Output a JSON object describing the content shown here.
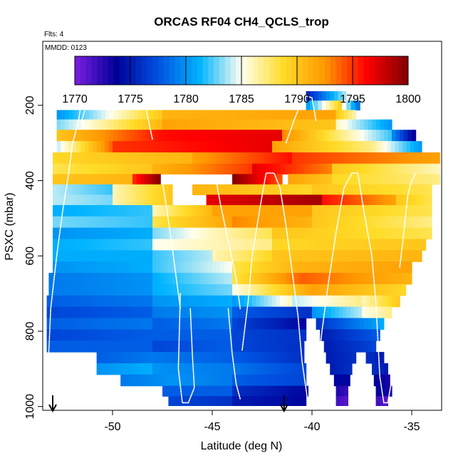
{
  "chart_data": {
    "type": "heatmap",
    "title": "ORCAS RF04 CH4_QCLS_trop",
    "flights_note": "Flts: 4",
    "date_note": "MMDD: 0123",
    "xlabel": "Latitude (deg N)",
    "ylabel": "PSXC (mbar)",
    "xlim": [
      -53.5,
      -33.5
    ],
    "ylim": [
      1010,
      30
    ],
    "x_ticks": [
      -50,
      -45,
      -40,
      -35
    ],
    "y_ticks": [
      200,
      400,
      600,
      800,
      1000
    ],
    "colorbar": {
      "min": 1770,
      "max": 1800,
      "ticks": [
        1770,
        1775,
        1780,
        1785,
        1790,
        1795,
        1800
      ],
      "colors": [
        "#7b1fe0",
        "#000099",
        "#0050e0",
        "#00b4ff",
        "#fffff0",
        "#ffdc28",
        "#ff9900",
        "#ff0000",
        "#800000"
      ]
    },
    "grid": false,
    "arrows_lat": [
      -53,
      -41.4
    ],
    "bands": [
      {
        "p": 175,
        "segs": [
          [
            -40.3,
            -38.3,
            1775,
            1784
          ]
        ]
      },
      {
        "p": 200,
        "segs": [
          [
            -40.3,
            -38.5,
            1780,
            1790
          ],
          [
            -38.5,
            -37.6,
            1786,
            1778
          ]
        ]
      },
      {
        "p": 225,
        "segs": [
          [
            -52.8,
            -47.5,
            1780,
            1790
          ],
          [
            -47.5,
            -38.8,
            1791,
            1792
          ],
          [
            -38.8,
            -37.8,
            1790,
            1786
          ]
        ]
      },
      {
        "p": 250,
        "segs": [
          [
            -52.8,
            -47.5,
            1783,
            1791
          ],
          [
            -47.5,
            -38.8,
            1792,
            1790
          ],
          [
            -38.8,
            -36,
            1786,
            1780
          ]
        ]
      },
      {
        "p": 280,
        "segs": [
          [
            -52.8,
            -47.5,
            1790,
            1796
          ],
          [
            -47.5,
            -41.5,
            1796,
            1797
          ],
          [
            -41.5,
            -36,
            1793,
            1782
          ],
          [
            -36,
            -34.8,
            1780,
            1773
          ]
        ]
      },
      {
        "p": 310,
        "segs": [
          [
            -52.8,
            -50,
            1784,
            1794
          ],
          [
            -50,
            -42,
            1795,
            1797
          ],
          [
            -42,
            -37,
            1792,
            1787
          ],
          [
            -37,
            -34.5,
            1787,
            1780
          ]
        ]
      },
      {
        "p": 340,
        "segs": [
          [
            -53,
            -46,
            1789,
            1791
          ],
          [
            -46,
            -41,
            1792,
            1796
          ],
          [
            -41,
            -33.6,
            1795,
            1792
          ]
        ]
      },
      {
        "p": 370,
        "segs": [
          [
            -53,
            -48,
            1788,
            1790
          ],
          [
            -48,
            -43,
            1791,
            1795
          ],
          [
            -43,
            -39,
            1797,
            1793
          ],
          [
            -39,
            -33.6,
            1790,
            1786
          ]
        ]
      },
      {
        "p": 395,
        "segs": [
          [
            -53,
            -49,
            1790,
            1791
          ],
          [
            -49,
            -47.6,
            1795,
            1800
          ],
          [
            -44,
            -41.5,
            1800,
            1794
          ],
          [
            -41.2,
            -39,
            1792,
            1790
          ],
          [
            -39,
            -33.6,
            1789,
            1787
          ]
        ]
      },
      {
        "p": 425,
        "segs": [
          [
            -53,
            -50,
            1784,
            1782
          ],
          [
            -50,
            -47,
            1786,
            1790
          ],
          [
            -46,
            -40,
            1791,
            1789
          ],
          [
            -40,
            -34,
            1790,
            1788
          ]
        ]
      },
      {
        "p": 450,
        "segs": [
          [
            -53,
            -50,
            1784,
            1783
          ],
          [
            -50,
            -47,
            1786,
            1790
          ],
          [
            -45.3,
            -39.5,
            1797,
            1799
          ],
          [
            -39.5,
            -35.8,
            1796,
            1792
          ],
          [
            -35.8,
            -34,
            1790,
            1788
          ]
        ]
      },
      {
        "p": 480,
        "segs": [
          [
            -53,
            -48,
            1781,
            1782
          ],
          [
            -48,
            -45,
            1786,
            1791
          ],
          [
            -45,
            -40,
            1792,
            1792
          ],
          [
            -40,
            -34,
            1790,
            1788
          ]
        ]
      },
      {
        "p": 510,
        "segs": [
          [
            -53,
            -48,
            1783,
            1782
          ],
          [
            -48,
            -44,
            1788,
            1792
          ],
          [
            -44,
            -40,
            1793,
            1791
          ],
          [
            -40,
            -34,
            1790,
            1787
          ]
        ]
      },
      {
        "p": 540,
        "segs": [
          [
            -53,
            -48,
            1780,
            1781
          ],
          [
            -48,
            -45,
            1783,
            1786
          ],
          [
            -45,
            -42,
            1786,
            1788
          ],
          [
            -42,
            -34,
            1790,
            1788
          ]
        ]
      },
      {
        "p": 570,
        "segs": [
          [
            -53,
            -48,
            1781,
            1782
          ],
          [
            -48,
            -45,
            1785,
            1786
          ],
          [
            -45,
            -42,
            1786,
            1787
          ],
          [
            -42,
            -34.3,
            1789,
            1790
          ]
        ]
      },
      {
        "p": 600,
        "segs": [
          [
            -53,
            -48,
            1781,
            1781
          ],
          [
            -48,
            -45,
            1782,
            1784
          ],
          [
            -45,
            -42,
            1786,
            1789
          ],
          [
            -42,
            -34.5,
            1790,
            1791
          ]
        ]
      },
      {
        "p": 630,
        "segs": [
          [
            -53,
            -48,
            1780,
            1781
          ],
          [
            -48,
            -44,
            1782,
            1785
          ],
          [
            -44,
            -40.8,
            1788,
            1791
          ],
          [
            -40.8,
            -35,
            1791,
            1792
          ]
        ]
      },
      {
        "p": 660,
        "segs": [
          [
            -53.2,
            -48,
            1779,
            1780
          ],
          [
            -48,
            -44,
            1781,
            1784
          ],
          [
            -44,
            -40.5,
            1788,
            1794
          ],
          [
            -40.5,
            -35,
            1794,
            1791
          ]
        ]
      },
      {
        "p": 690,
        "segs": [
          [
            -53.2,
            -48,
            1779,
            1780
          ],
          [
            -48,
            -44,
            1781,
            1783
          ],
          [
            -44,
            -40,
            1785,
            1792
          ],
          [
            -40,
            -35.3,
            1792,
            1789
          ]
        ]
      },
      {
        "p": 720,
        "segs": [
          [
            -53.3,
            -48,
            1778,
            1779
          ],
          [
            -48,
            -44,
            1780,
            1781
          ],
          [
            -44,
            -41,
            1780,
            1786
          ],
          [
            -41,
            -37.5,
            1784,
            1787
          ],
          [
            -37.5,
            -35.6,
            1786,
            1790
          ]
        ]
      },
      {
        "p": 750,
        "segs": [
          [
            -53.3,
            -48,
            1777,
            1778
          ],
          [
            -48,
            -44,
            1779,
            1780
          ],
          [
            -44,
            -40,
            1778,
            1776
          ],
          [
            -40,
            -37.5,
            1780,
            1784
          ],
          [
            -37.5,
            -36,
            1785,
            1787
          ]
        ]
      },
      {
        "p": 780,
        "segs": [
          [
            -53.3,
            -48,
            1778,
            1779
          ],
          [
            -48,
            -44,
            1778,
            1779
          ],
          [
            -44,
            -40.3,
            1777,
            1774
          ],
          [
            -39.8,
            -36.4,
            1776,
            1781
          ]
        ]
      },
      {
        "p": 810,
        "segs": [
          [
            -53.3,
            -48,
            1777,
            1778
          ],
          [
            -48,
            -44,
            1778,
            1778
          ],
          [
            -44,
            -40.3,
            1777,
            1776
          ],
          [
            -39.6,
            -36.6,
            1775,
            1778
          ]
        ]
      },
      {
        "p": 840,
        "segs": [
          [
            -53.3,
            -48,
            1778,
            1778
          ],
          [
            -48,
            -44,
            1777,
            1778
          ],
          [
            -44,
            -40.4,
            1777,
            1776
          ],
          [
            -39.4,
            -36.8,
            1775,
            1777
          ]
        ]
      },
      {
        "p": 870,
        "segs": [
          [
            -50.8,
            -48,
            1778,
            1779
          ],
          [
            -48,
            -44,
            1779,
            1778
          ],
          [
            -44,
            -40.4,
            1778,
            1776
          ],
          [
            -39.3,
            -37.8,
            1775,
            1776
          ],
          [
            -37.3,
            -36.4,
            1776,
            1775
          ]
        ]
      },
      {
        "p": 900,
        "segs": [
          [
            -50.8,
            -48,
            1780,
            1781
          ],
          [
            -48,
            -44,
            1780,
            1779
          ],
          [
            -44,
            -40.3,
            1779,
            1777
          ],
          [
            -39.1,
            -38,
            1775,
            1776
          ],
          [
            -37,
            -36.2,
            1776,
            1775
          ]
        ]
      },
      {
        "p": 930,
        "segs": [
          [
            -49.6,
            -47,
            1779,
            1780
          ],
          [
            -47,
            -44,
            1780,
            1779
          ],
          [
            -44,
            -40.3,
            1778,
            1777
          ],
          [
            -38.9,
            -38.1,
            1774,
            1774
          ],
          [
            -36.9,
            -36.1,
            1774,
            1773
          ]
        ]
      },
      {
        "p": 960,
        "segs": [
          [
            -47.5,
            -44,
            1778,
            1778
          ],
          [
            -44,
            -40.2,
            1776,
            1774
          ],
          [
            -38.8,
            -38.2,
            1773,
            1772
          ],
          [
            -36.8,
            -36,
            1774,
            1773
          ]
        ]
      },
      {
        "p": 985,
        "segs": [
          [
            -47.2,
            -44,
            1777,
            1776
          ],
          [
            -44,
            -40.3,
            1775,
            1774
          ],
          [
            -38.8,
            -38.2,
            1772,
            1771
          ],
          [
            -36.8,
            -36.2,
            1772,
            1771
          ]
        ]
      }
    ],
    "flight_tracks": [
      [
        [
          -51.5,
          170
        ],
        [
          -51.7,
          240
        ],
        [
          -52.0,
          300
        ],
        [
          -52.2,
          380
        ],
        [
          -52.5,
          480
        ],
        [
          -52.8,
          600
        ],
        [
          -53.1,
          740
        ],
        [
          -53.2,
          860
        ]
      ],
      [
        [
          -51.4,
          215
        ],
        [
          -51.6,
          250
        ]
      ],
      [
        [
          -48.3,
          215
        ],
        [
          -48.0,
          290
        ]
      ],
      [
        [
          -47.5,
          400
        ],
        [
          -47.1,
          540
        ],
        [
          -46.8,
          660
        ],
        [
          -46.6,
          740
        ]
      ],
      [
        [
          -46.6,
          700
        ],
        [
          -46.7,
          900
        ],
        [
          -46.5,
          990
        ],
        [
          -46.2,
          990
        ],
        [
          -45.9,
          950
        ],
        [
          -46.0,
          860
        ],
        [
          -46.1,
          740
        ]
      ],
      [
        [
          -44.8,
          400
        ],
        [
          -44.6,
          460
        ],
        [
          -44.2,
          560
        ],
        [
          -43.8,
          660
        ],
        [
          -43.6,
          740
        ]
      ],
      [
        [
          -44.2,
          740
        ],
        [
          -44.0,
          860
        ],
        [
          -43.8,
          940
        ],
        [
          -43.6,
          980
        ]
      ],
      [
        [
          -43.5,
          850
        ],
        [
          -43.2,
          720
        ],
        [
          -43.0,
          600
        ],
        [
          -42.6,
          470
        ],
        [
          -42.3,
          380
        ],
        [
          -41.9,
          380
        ],
        [
          -41.6,
          420
        ],
        [
          -41.3,
          520
        ],
        [
          -41.0,
          640
        ],
        [
          -40.7,
          760
        ],
        [
          -40.5,
          880
        ],
        [
          -40.2,
          990
        ],
        [
          -40.0,
          990
        ],
        [
          -39.9,
          940
        ]
      ],
      [
        [
          -39.8,
          940
        ],
        [
          -39.5,
          800
        ],
        [
          -39.2,
          680
        ],
        [
          -38.8,
          540
        ],
        [
          -38.4,
          420
        ],
        [
          -38.0,
          380
        ],
        [
          -37.7,
          380
        ],
        [
          -37.4,
          480
        ],
        [
          -37.0,
          600
        ],
        [
          -36.8,
          720
        ],
        [
          -36.7,
          820
        ],
        [
          -36.6,
          920
        ],
        [
          -36.4,
          990
        ],
        [
          -36.2,
          990
        ],
        [
          -36.0,
          930
        ],
        [
          -35.8,
          850
        ]
      ],
      [
        [
          -35.6,
          630
        ],
        [
          -35.4,
          540
        ],
        [
          -35.2,
          440
        ],
        [
          -35.0,
          400
        ],
        [
          -34.8,
          380
        ]
      ],
      [
        [
          -41.3,
          300
        ],
        [
          -40.9,
          240
        ],
        [
          -40.6,
          200
        ],
        [
          -40.3,
          175
        ],
        [
          -40.0,
          180
        ],
        [
          -39.8,
          240
        ]
      ]
    ]
  }
}
